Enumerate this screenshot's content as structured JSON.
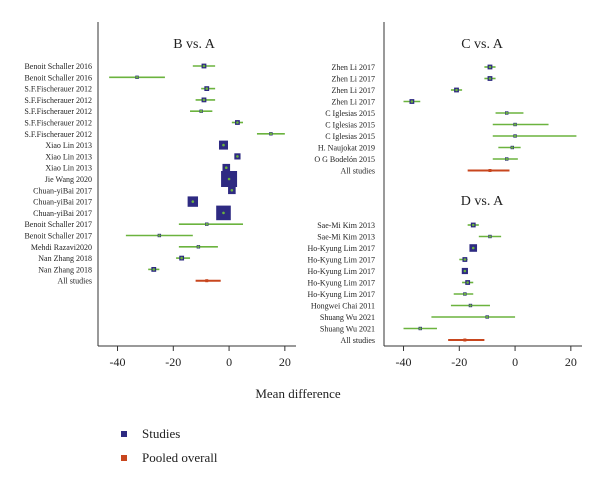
{
  "chart_data": [
    {
      "type": "forest",
      "title": "B vs. A",
      "xlabel": "Mean difference",
      "xlim": [
        -47,
        24
      ],
      "xticks": [
        -40,
        -20,
        0,
        20
      ],
      "rows": [
        {
          "label": "Benoit Schaller 2016",
          "est": -9,
          "lo": -13,
          "hi": -5,
          "kind": "study",
          "w": 2
        },
        {
          "label": "Benoit Schaller 2016",
          "est": -33,
          "lo": -43,
          "hi": -23,
          "kind": "study",
          "w": 1
        },
        {
          "label": "S.F.Fischerauer 2012",
          "est": -8,
          "lo": -10,
          "hi": -5,
          "kind": "study",
          "w": 2
        },
        {
          "label": "S.F.Fischerauer 2012",
          "est": -9,
          "lo": -12,
          "hi": -5,
          "kind": "study",
          "w": 2
        },
        {
          "label": "S.F.Fischerauer 2012",
          "est": -10,
          "lo": -14,
          "hi": -6,
          "kind": "study",
          "w": 1
        },
        {
          "label": "S.F.Fischerauer 2012",
          "est": 3,
          "lo": 1,
          "hi": 5,
          "kind": "study",
          "w": 2
        },
        {
          "label": "S.F.Fischerauer 2012",
          "est": 15,
          "lo": 10,
          "hi": 20,
          "kind": "study",
          "w": 1
        },
        {
          "label": "Xiao Lin 2013",
          "est": -2,
          "lo": -3,
          "hi": -1,
          "kind": "study",
          "w": 5
        },
        {
          "label": "Xiao Lin 2013",
          "est": 3,
          "lo": 2,
          "hi": 4,
          "kind": "study",
          "w": 3
        },
        {
          "label": "Xiao Lin 2013",
          "est": -1,
          "lo": -2,
          "hi": 0,
          "kind": "study",
          "w": 4
        },
        {
          "label": "Jie Wang 2020",
          "est": 0,
          "lo": -1,
          "hi": 1,
          "kind": "study",
          "w": 10
        },
        {
          "label": "Chuan-yiBai 2017",
          "est": 1,
          "lo": 0,
          "hi": 2,
          "kind": "study",
          "w": 4
        },
        {
          "label": "Chuan-yiBai 2017",
          "est": -13,
          "lo": -14,
          "hi": -12,
          "kind": "study",
          "w": 6
        },
        {
          "label": "Chuan-yiBai 2017",
          "est": -2,
          "lo": -3,
          "hi": -1,
          "kind": "study",
          "w": 9
        },
        {
          "label": "Benoit Schaller 2017",
          "est": -8,
          "lo": -18,
          "hi": 5,
          "kind": "study",
          "w": 1
        },
        {
          "label": "Benoit Schaller 2017",
          "est": -25,
          "lo": -37,
          "hi": -13,
          "kind": "study",
          "w": 1
        },
        {
          "label": "Mehdi Razavi2020",
          "est": -11,
          "lo": -18,
          "hi": -4,
          "kind": "study",
          "w": 1
        },
        {
          "label": "Nan Zhang 2018",
          "est": -17,
          "lo": -19,
          "hi": -14,
          "kind": "study",
          "w": 2
        },
        {
          "label": "Nan Zhang 2018",
          "est": -27,
          "lo": -29,
          "hi": -25,
          "kind": "study",
          "w": 2
        },
        {
          "label": "All studies",
          "est": -8,
          "lo": -12,
          "hi": -3,
          "kind": "pooled",
          "w": 1
        }
      ]
    },
    {
      "type": "forest",
      "title": "C vs. A",
      "xlabel": "",
      "xlim": [
        -47,
        24
      ],
      "xticks": [
        -40,
        -20,
        0,
        20
      ],
      "rows": [
        {
          "label": "Zhen Li 2017",
          "est": -9,
          "lo": -11,
          "hi": -7,
          "kind": "study",
          "w": 2
        },
        {
          "label": "Zhen Li 2017",
          "est": -9,
          "lo": -11,
          "hi": -7,
          "kind": "study",
          "w": 2
        },
        {
          "label": "Zhen Li 2017",
          "est": -21,
          "lo": -23,
          "hi": -19,
          "kind": "study",
          "w": 2
        },
        {
          "label": "Zhen Li 2017",
          "est": -37,
          "lo": -40,
          "hi": -34,
          "kind": "study",
          "w": 2
        },
        {
          "label": "C Iglesias 2015",
          "est": -3,
          "lo": -7,
          "hi": 3,
          "kind": "study",
          "w": 1
        },
        {
          "label": "C Iglesias 2015",
          "est": 0,
          "lo": -8,
          "hi": 12,
          "kind": "study",
          "w": 1
        },
        {
          "label": "C Iglesias 2015",
          "est": 0,
          "lo": -8,
          "hi": 22,
          "kind": "study",
          "w": 1
        },
        {
          "label": "H. Naujokat 2019",
          "est": -1,
          "lo": -6,
          "hi": 2,
          "kind": "study",
          "w": 1
        },
        {
          "label": "O G Bodelón 2015",
          "est": -3,
          "lo": -8,
          "hi": 1,
          "kind": "study",
          "w": 1
        },
        {
          "label": "All studies",
          "est": -9,
          "lo": -17,
          "hi": -2,
          "kind": "pooled",
          "w": 1
        }
      ]
    },
    {
      "type": "forest",
      "title": "D vs. A",
      "xlabel": "",
      "xlim": [
        -47,
        24
      ],
      "xticks": [
        -40,
        -20,
        0,
        20
      ],
      "rows": [
        {
          "label": "Sae-Mi Kim 2013",
          "est": -15,
          "lo": -17,
          "hi": -13,
          "kind": "study",
          "w": 2
        },
        {
          "label": "Sae-Mi Kim 2013",
          "est": -9,
          "lo": -13,
          "hi": -5,
          "kind": "study",
          "w": 1
        },
        {
          "label": "Ho-Kyung Lim 2017",
          "est": -15,
          "lo": -16,
          "hi": -14,
          "kind": "study",
          "w": 4
        },
        {
          "label": "Ho-Kyung Lim 2017",
          "est": -18,
          "lo": -20,
          "hi": -17,
          "kind": "study",
          "w": 2
        },
        {
          "label": "Ho-Kyung Lim 2017",
          "est": -18,
          "lo": -19,
          "hi": -17,
          "kind": "study",
          "w": 3
        },
        {
          "label": "Ho-Kyung Lim 2017",
          "est": -17,
          "lo": -19,
          "hi": -15,
          "kind": "study",
          "w": 2
        },
        {
          "label": "Ho-Kyung Lim 2017",
          "est": -18,
          "lo": -22,
          "hi": -15,
          "kind": "study",
          "w": 1
        },
        {
          "label": "Hongwei Chai 2011",
          "est": -16,
          "lo": -23,
          "hi": -9,
          "kind": "study",
          "w": 1
        },
        {
          "label": "Shuang Wu 2021",
          "est": -10,
          "lo": -30,
          "hi": 0,
          "kind": "study",
          "w": 1
        },
        {
          "label": "Shuang Wu 2021",
          "est": -34,
          "lo": -40,
          "hi": -28,
          "kind": "study",
          "w": 1
        },
        {
          "label": "All studies",
          "est": -18,
          "lo": -24,
          "hi": -11,
          "kind": "pooled",
          "w": 1
        }
      ]
    }
  ],
  "legend": {
    "studies": "Studies",
    "pooled": "Pooled overall"
  },
  "colors": {
    "ci_study": "#6bb33e",
    "ci_pooled": "#c8461e",
    "box_study": "#2e2a82",
    "axis": "#333333"
  }
}
